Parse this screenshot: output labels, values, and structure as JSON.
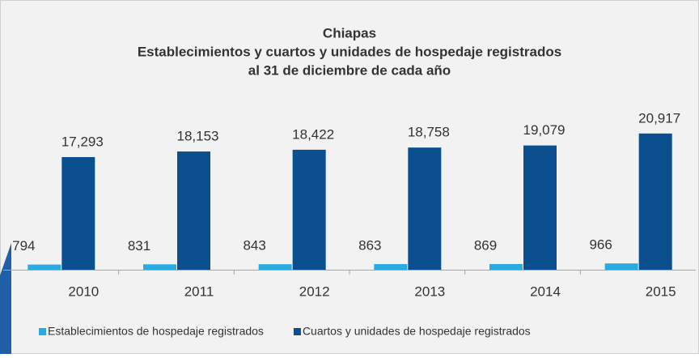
{
  "chart_data": {
    "type": "bar",
    "title": [
      "Chiapas",
      "Establecimientos y cuartos y unidades de hospedaje registrados",
      "al 31 de diciembre de cada año"
    ],
    "categories": [
      "2010",
      "2011",
      "2012",
      "2013",
      "2014",
      "2015"
    ],
    "series": [
      {
        "name": "Establecimientos de hospedaje registrados",
        "color": "#29abe2",
        "values": [
          794,
          831,
          843,
          863,
          869,
          966
        ]
      },
      {
        "name": "Cuartos y unidades de hospedaje registrados",
        "color": "#0b4f8e",
        "values": [
          17293,
          18153,
          18422,
          18758,
          19079,
          20917
        ],
        "value_labels": [
          "17,293",
          "18,153",
          "18,422",
          "18,758",
          "19,079",
          "20,917"
        ]
      }
    ],
    "ylim": [
      0,
      25000
    ]
  }
}
